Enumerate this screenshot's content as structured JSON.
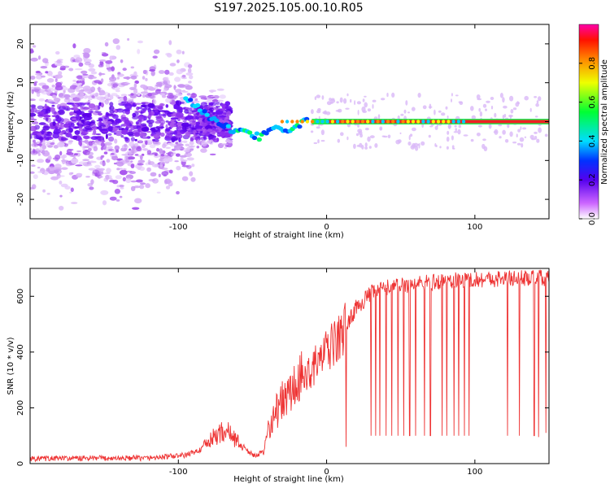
{
  "title": "S197.2025.105.00.10.R05",
  "chart_data": [
    {
      "type": "heatmap",
      "name": "spectrogram",
      "xlabel": "Height of straight line (km)",
      "ylabel": "Frequency (Hz)",
      "xlim": [
        -200,
        150
      ],
      "ylim": [
        -25,
        25
      ],
      "xticks": [
        -100,
        0,
        100
      ],
      "yticks": [
        -20,
        -10,
        0,
        10,
        20
      ],
      "colorbar": {
        "label": "Normalized spectral amplitude",
        "range": [
          0,
          1
        ],
        "ticks": [
          "0.0",
          "0.2",
          "0.4",
          "0.6",
          "0.8"
        ],
        "tick_values": [
          0,
          0.2,
          0.4,
          0.6,
          0.8
        ]
      },
      "signal_track": [
        {
          "x": -95,
          "f": 6
        },
        {
          "x": -85,
          "f": 3
        },
        {
          "x": -75,
          "f": 0
        },
        {
          "x": -65,
          "f": -2
        },
        {
          "x": -55,
          "f": -3
        },
        {
          "x": -45,
          "f": -4
        },
        {
          "x": -35,
          "f": -2
        },
        {
          "x": -25,
          "f": -2
        },
        {
          "x": -15,
          "f": 0
        },
        {
          "x": -10,
          "f": 2
        },
        {
          "x": -5,
          "f": 0
        },
        {
          "x": 0,
          "f": 0
        },
        {
          "x": 150,
          "f": 0
        }
      ],
      "reference_line_hz": 0
    },
    {
      "type": "line",
      "name": "snr",
      "xlabel": "Height of straight line (km)",
      "ylabel": "SNR (10 * v/v)",
      "xlim": [
        -200,
        150
      ],
      "ylim": [
        0,
        700
      ],
      "xticks": [
        -100,
        0,
        100
      ],
      "yticks": [
        0,
        200,
        400,
        600
      ],
      "color": "#ee3333",
      "profile": [
        {
          "x": -200,
          "snr": 18
        },
        {
          "x": -120,
          "snr": 20
        },
        {
          "x": -95,
          "snr": 30
        },
        {
          "x": -85,
          "snr": 50
        },
        {
          "x": -75,
          "snr": 100
        },
        {
          "x": -68,
          "snr": 120
        },
        {
          "x": -60,
          "snr": 80
        },
        {
          "x": -50,
          "snr": 30
        },
        {
          "x": -42,
          "snr": 40
        },
        {
          "x": -40,
          "snr": 120
        },
        {
          "x": -35,
          "snr": 180
        },
        {
          "x": -30,
          "snr": 220
        },
        {
          "x": -20,
          "snr": 280
        },
        {
          "x": -10,
          "snr": 340
        },
        {
          "x": 0,
          "snr": 400
        },
        {
          "x": 10,
          "snr": 460
        },
        {
          "x": 20,
          "snr": 560
        },
        {
          "x": 30,
          "snr": 610
        },
        {
          "x": 40,
          "snr": 630
        },
        {
          "x": 60,
          "snr": 645
        },
        {
          "x": 80,
          "snr": 655
        },
        {
          "x": 100,
          "snr": 660
        },
        {
          "x": 125,
          "snr": 665
        },
        {
          "x": 150,
          "snr": 665
        }
      ],
      "dropouts": [
        {
          "x": 13,
          "snr": 60
        },
        {
          "x": 30,
          "snr": 100
        },
        {
          "x": 33,
          "snr": 100
        },
        {
          "x": 36,
          "snr": 100
        },
        {
          "x": 40,
          "snr": 100
        },
        {
          "x": 44,
          "snr": 100
        },
        {
          "x": 48,
          "snr": 100
        },
        {
          "x": 52,
          "snr": 100
        },
        {
          "x": 56,
          "snr": 100
        },
        {
          "x": 60,
          "snr": 100
        },
        {
          "x": 66,
          "snr": 100
        },
        {
          "x": 70,
          "snr": 100
        },
        {
          "x": 78,
          "snr": 100
        },
        {
          "x": 81,
          "snr": 100
        },
        {
          "x": 86,
          "snr": 100
        },
        {
          "x": 89,
          "snr": 100
        },
        {
          "x": 93,
          "snr": 100
        },
        {
          "x": 96,
          "snr": 100
        },
        {
          "x": 122,
          "snr": 100
        },
        {
          "x": 130,
          "snr": 100
        },
        {
          "x": 140,
          "snr": 100
        },
        {
          "x": 143,
          "snr": 95
        },
        {
          "x": 148,
          "snr": 110
        }
      ]
    }
  ]
}
